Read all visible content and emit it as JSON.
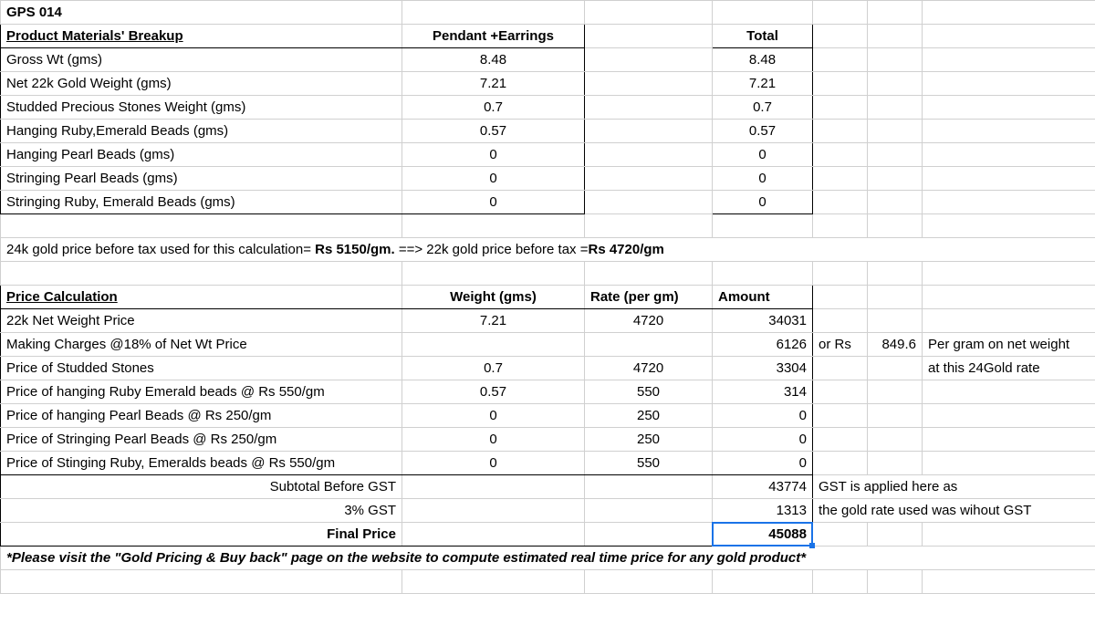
{
  "header": {
    "product_code": "GPS 014"
  },
  "materials": {
    "title": "Product Materials' Breakup",
    "header_b": "Pendant +Earrings",
    "header_d": "Total",
    "rows": [
      {
        "label": "Gross Wt (gms)",
        "b": "8.48",
        "d": "8.48"
      },
      {
        "label": "Net 22k Gold Weight (gms)",
        "b": "7.21",
        "d": "7.21"
      },
      {
        "label": "Studded Precious Stones Weight (gms)",
        "b": "0.7",
        "d": "0.7"
      },
      {
        "label": "Hanging Ruby,Emerald Beads (gms)",
        "b": "0.57",
        "d": "0.57"
      },
      {
        "label": "Hanging Pearl Beads (gms)",
        "b": "0",
        "d": "0"
      },
      {
        "label": "Stringing Pearl Beads (gms)",
        "b": "0",
        "d": "0"
      },
      {
        "label": "Stringing Ruby, Emerald Beads (gms)",
        "b": "0",
        "d": "0"
      }
    ]
  },
  "gold_note": {
    "part1": "24k gold price before tax used for this calculation= ",
    "part2": "Rs 5150/gm.",
    "part3": "  ==> 22k gold price before tax =",
    "part4": "Rs 4720/gm"
  },
  "price": {
    "title": "Price Calculation",
    "header_b": "Weight (gms)",
    "header_c": "Rate (per gm)",
    "header_d": "Amount",
    "rows": [
      {
        "label": "22k Net Weight Price",
        "b": "7.21",
        "c": "4720",
        "d": "34031"
      },
      {
        "label": " Making Charges @18% of Net Wt Price",
        "b": "",
        "c": "",
        "d": "6126",
        "note_e": "or Rs",
        "note_f": "849.6",
        "note_g": "Per gram on net weight"
      },
      {
        "label": "Price of Studded Stones",
        "b": "0.7",
        "c": "4720",
        "d": "3304",
        "note_g": "at this 24Gold rate"
      },
      {
        "label": "Price of hanging Ruby Emerald beads @ Rs 550/gm",
        "b": "0.57",
        "c": "550",
        "d": "314"
      },
      {
        "label": "Price of hanging Pearl Beads @ Rs 250/gm",
        "b": "0",
        "c": "250",
        "d": "0"
      },
      {
        "label": "Price of Stringing Pearl Beads @ Rs 250/gm",
        "b": "0",
        "c": "250",
        "d": "0"
      },
      {
        "label": "Price of Stinging Ruby, Emeralds beads @ Rs 550/gm",
        "b": "0",
        "c": "550",
        "d": "0"
      }
    ],
    "subtotal": {
      "label": "Subtotal Before GST",
      "d": "43774",
      "note": "GST is applied here as"
    },
    "gst": {
      "label": "3% GST",
      "d": "1313",
      "note": "the gold rate used was wihout GST"
    },
    "final": {
      "label": "Final Price",
      "d": "45088"
    }
  },
  "footer_note": "*Please visit the \"Gold Pricing & Buy back\" page on the website to compute estimated real time price for any gold product*"
}
